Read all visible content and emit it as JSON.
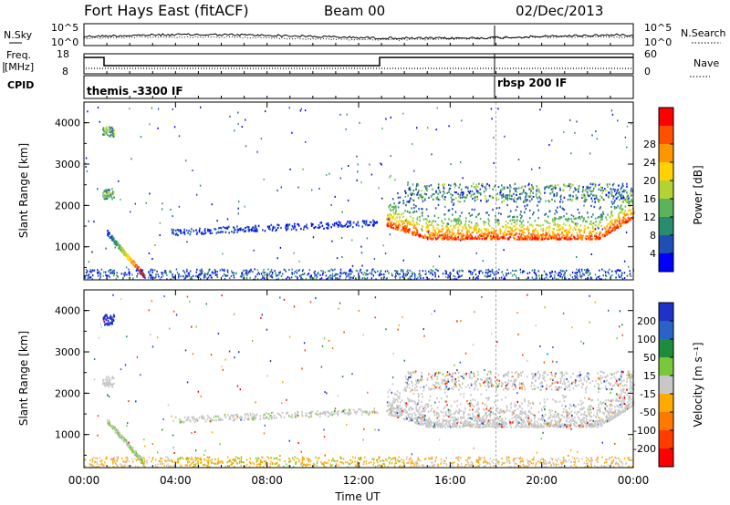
{
  "header": {
    "station": "Fort Hays East (fitACF)",
    "beam": "Beam 00",
    "date": "02/Dec/2013"
  },
  "top_panels": {
    "nsky_label": "N.Sky",
    "nsearch_label": "N.Search",
    "noise_ticks": [
      "10^5",
      "10^0"
    ],
    "freq_label_line1": "Freq.",
    "freq_label_line2": "[MHz]",
    "freq_ticks": [
      "18",
      "8"
    ],
    "nave_ticks": [
      "60",
      "0"
    ],
    "nave_label": "Nave",
    "cpid_label": "CPID",
    "cpid_entries": [
      {
        "text": "themis -3300 IF",
        "start_hour": 0
      },
      {
        "text": "rbsp 200 IF",
        "start_hour": 18
      }
    ]
  },
  "chart_data": [
    {
      "type": "heatmap",
      "name": "power",
      "ylabel": "Slant Range [km]",
      "ylim": [
        200,
        4500
      ],
      "xlim": [
        0,
        24
      ],
      "yticks": [
        1000,
        2000,
        3000,
        4000
      ],
      "colorbar": {
        "label": "Power [dB]",
        "ticks": [
          4,
          8,
          12,
          16,
          20,
          24,
          28
        ],
        "colors": [
          "#0000ff",
          "#1e50b4",
          "#2a8c6e",
          "#5ab45a",
          "#b4d232",
          "#ffd200",
          "#ff9600",
          "#ff5000",
          "#ff0000"
        ]
      }
    },
    {
      "type": "heatmap",
      "name": "velocity",
      "ylabel": "Slant Range [km]",
      "ylim": [
        200,
        4500
      ],
      "xlim": [
        0,
        24
      ],
      "yticks": [
        1000,
        2000,
        3000,
        4000
      ],
      "xticks": [
        "00:00",
        "04:00",
        "08:00",
        "12:00",
        "16:00",
        "20:00",
        "00:00"
      ],
      "xlabel": "Time UT",
      "colorbar": {
        "label": "Velocity [m s⁻¹]",
        "ticks": [
          200,
          100,
          50,
          15,
          -15,
          -50,
          -100,
          -200
        ],
        "colors": [
          "#1e32c8",
          "#2864c8",
          "#1e8c3c",
          "#78c83c",
          "#c8c8c8",
          "#ffaa00",
          "#ff7800",
          "#ff3c00",
          "#ff0000"
        ]
      }
    }
  ]
}
